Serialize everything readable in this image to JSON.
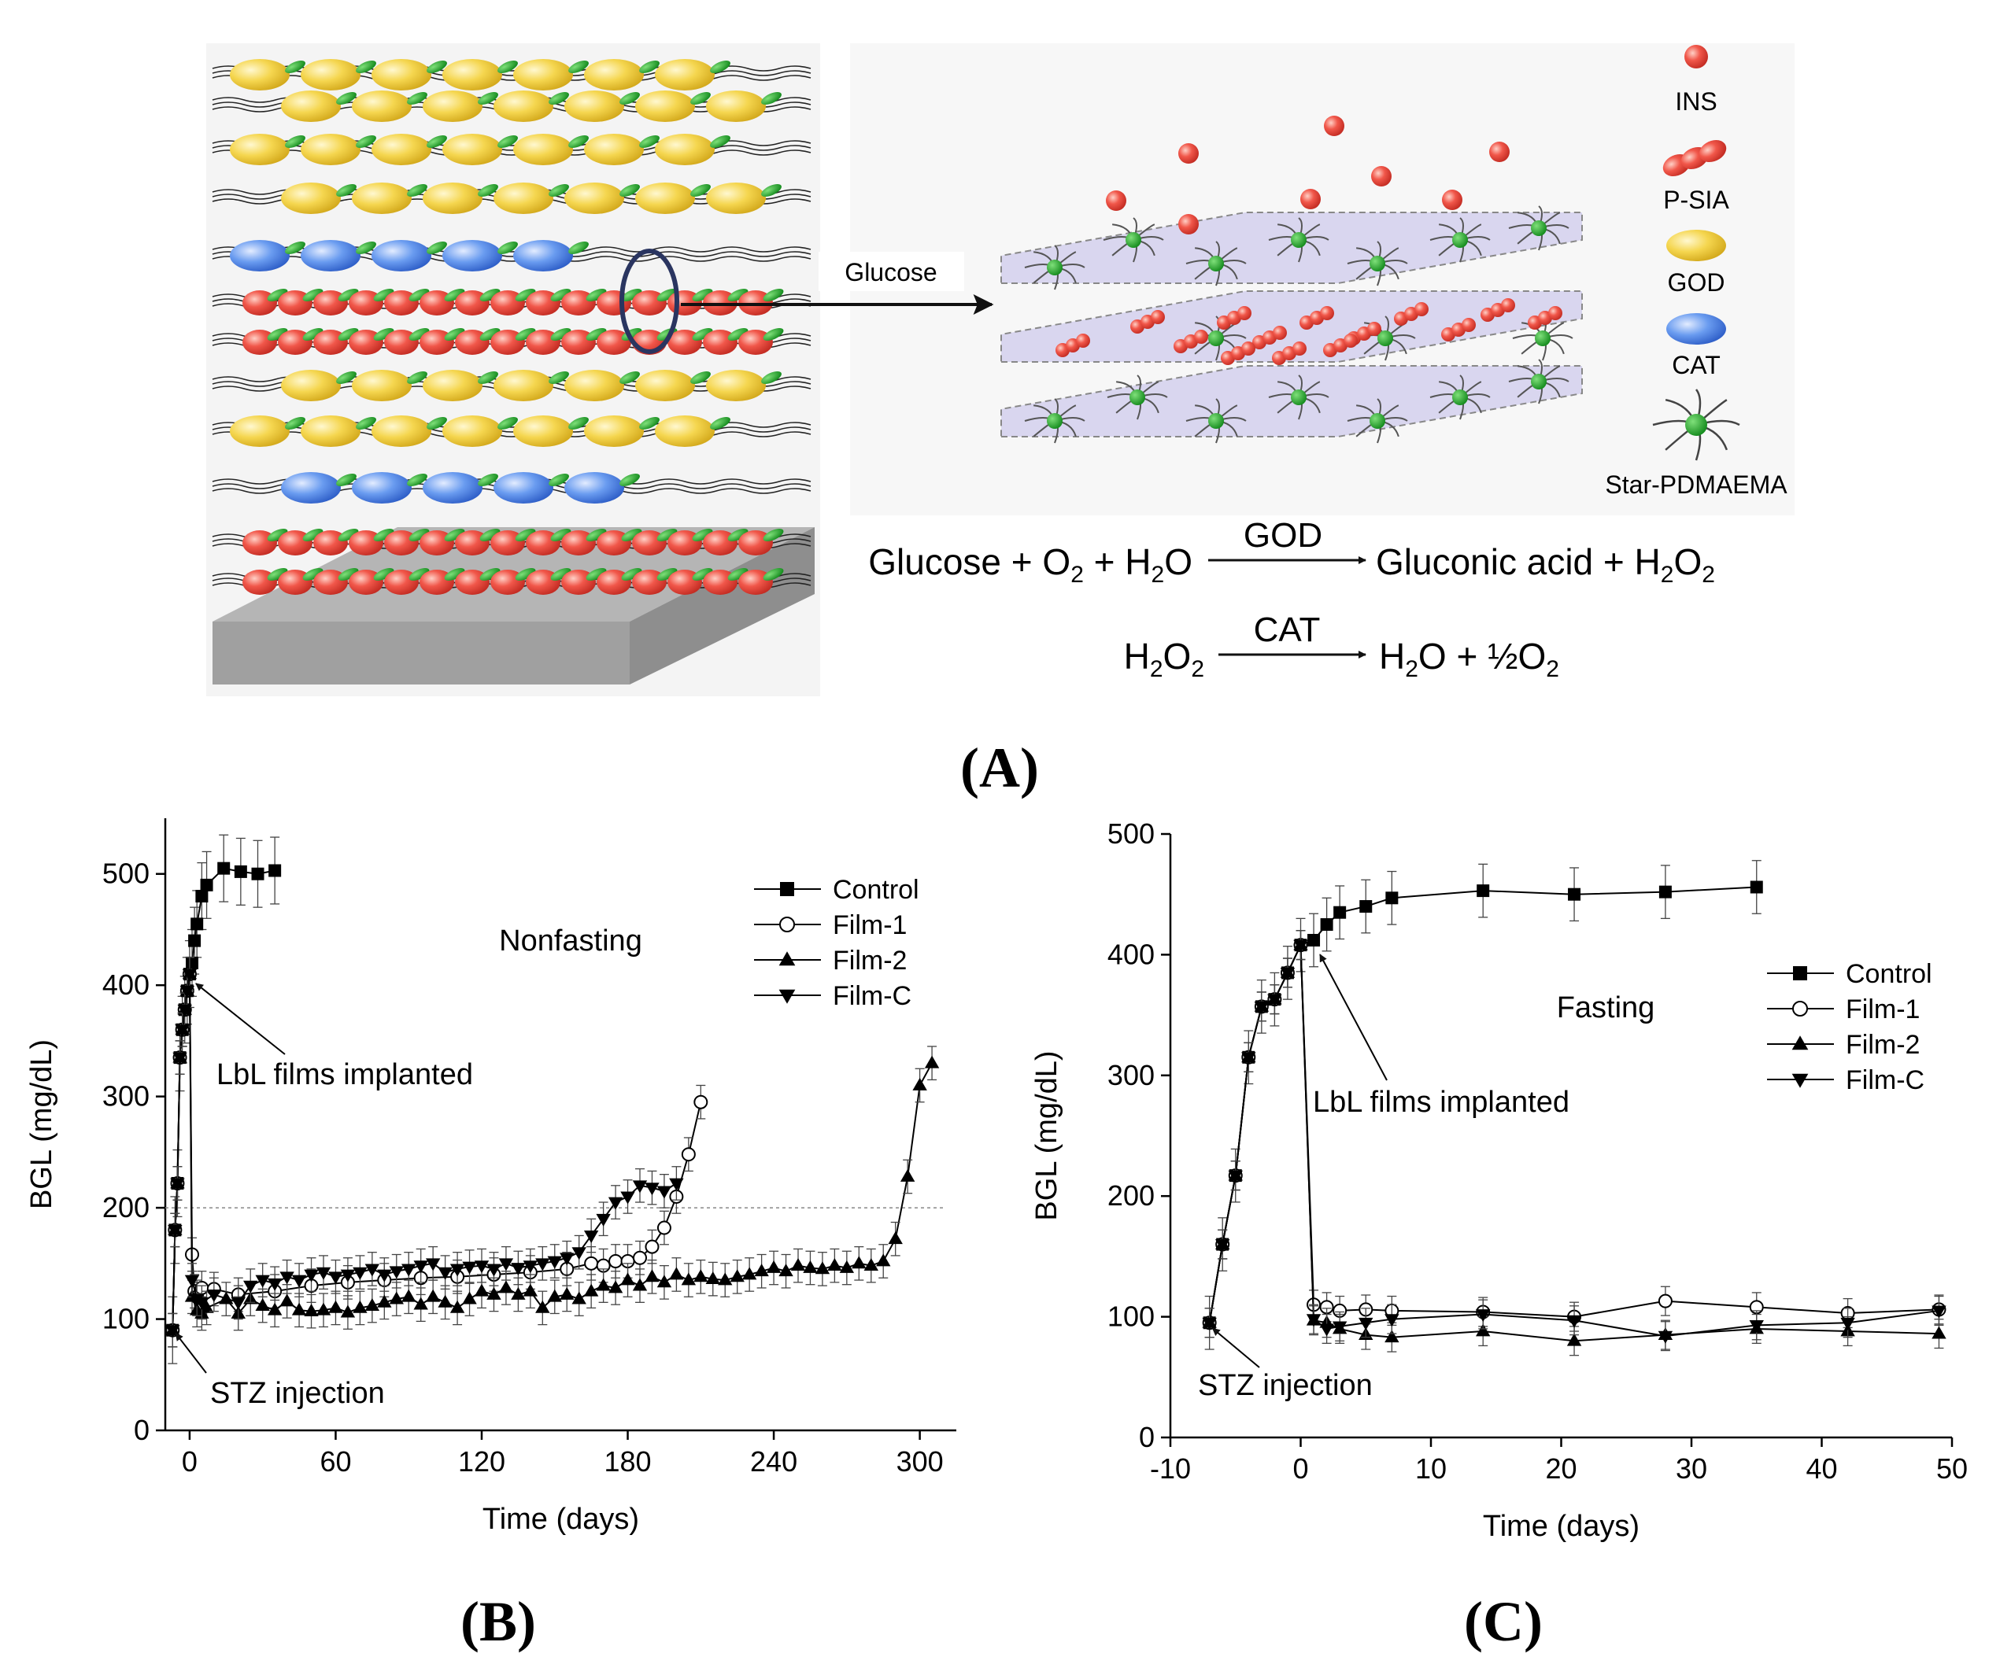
{
  "panel_a": {
    "label": "(A)",
    "arrow_label": "Glucose",
    "legend": [
      {
        "label": "INS",
        "icon": "sphere-red",
        "color": "#ef5a4a"
      },
      {
        "label": "P-SIA",
        "icon": "chain-red",
        "color": "#ef4a3f"
      },
      {
        "label": "GOD",
        "icon": "ellipse-yellow",
        "color": "#f4d44a"
      },
      {
        "label": "CAT",
        "icon": "ellipse-blue",
        "color": "#5a8fe8"
      },
      {
        "label": "Star-PDMAEMA",
        "icon": "star-polymer",
        "color": "#1f9a2a"
      }
    ],
    "reaction1": {
      "left_parts": [
        "Glucose + O",
        "2",
        " + H",
        "2",
        "O"
      ],
      "enzyme": "GOD",
      "right_parts": [
        "Gluconic acid + H",
        "2",
        "O",
        "2"
      ]
    },
    "reaction2": {
      "left_parts": [
        "H",
        "2",
        "O",
        "2"
      ],
      "enzyme": "CAT",
      "right_parts": [
        "H",
        "2",
        "O + ½O",
        "2"
      ]
    }
  },
  "chart_data": [
    {
      "id": "B",
      "type": "line",
      "panel_label": "(B)",
      "annotation": "Nonfasting",
      "xlabel": "Time (days)",
      "ylabel": "BGL (mg/dL)",
      "xlim": [
        -10,
        315
      ],
      "ylim": [
        0,
        550
      ],
      "xticks": [
        0,
        60,
        120,
        180,
        240,
        300
      ],
      "yticks": [
        0,
        100,
        200,
        300,
        400,
        500
      ],
      "reference_line": 200,
      "callouts": [
        {
          "text": "LbL films implanted",
          "point": [
            0,
            410
          ]
        },
        {
          "text": "STZ injection",
          "point": [
            -7,
            90
          ]
        }
      ],
      "series": [
        {
          "name": "Control",
          "marker": "square-filled",
          "x": [
            -7,
            -6,
            -5,
            -4,
            -3,
            -2,
            -1,
            0,
            1,
            2,
            3,
            5,
            7,
            14,
            21,
            28,
            35
          ],
          "y": [
            90,
            180,
            222,
            335,
            360,
            378,
            395,
            410,
            420,
            440,
            455,
            480,
            490,
            505,
            502,
            500,
            503
          ],
          "err": 30
        },
        {
          "name": "Film-1",
          "marker": "circle-open",
          "x": [
            -7,
            -6,
            -5,
            -4,
            -3,
            -2,
            -1,
            0,
            1,
            2,
            3,
            5,
            10,
            20,
            35,
            50,
            65,
            80,
            95,
            110,
            125,
            140,
            155,
            165,
            170,
            175,
            180,
            185,
            190,
            195,
            200,
            205,
            210
          ],
          "y": [
            90,
            180,
            222,
            335,
            360,
            378,
            395,
            410,
            158,
            125,
            120,
            128,
            127,
            122,
            125,
            130,
            133,
            135,
            137,
            138,
            140,
            142,
            145,
            150,
            148,
            152,
            152,
            155,
            165,
            182,
            210,
            248,
            295
          ],
          "err": 15
        },
        {
          "name": "Film-2",
          "marker": "triangle-up-filled",
          "x": [
            -7,
            -6,
            -5,
            -4,
            -3,
            -2,
            -1,
            0,
            1,
            3,
            5,
            7,
            15,
            20,
            25,
            30,
            35,
            40,
            45,
            50,
            55,
            60,
            65,
            70,
            75,
            80,
            85,
            90,
            95,
            100,
            105,
            110,
            115,
            120,
            125,
            130,
            135,
            140,
            145,
            150,
            155,
            160,
            165,
            170,
            175,
            180,
            185,
            190,
            195,
            200,
            205,
            210,
            215,
            220,
            225,
            230,
            235,
            240,
            245,
            250,
            255,
            260,
            265,
            270,
            275,
            280,
            285,
            290,
            295,
            300,
            305
          ],
          "y": [
            90,
            180,
            222,
            335,
            360,
            378,
            395,
            410,
            120,
            108,
            105,
            110,
            118,
            105,
            118,
            112,
            108,
            116,
            108,
            107,
            108,
            110,
            106,
            110,
            112,
            115,
            118,
            120,
            113,
            120,
            115,
            110,
            118,
            125,
            122,
            128,
            122,
            125,
            110,
            120,
            122,
            118,
            125,
            130,
            128,
            135,
            130,
            138,
            133,
            140,
            135,
            138,
            136,
            135,
            138,
            140,
            143,
            146,
            143,
            148,
            146,
            145,
            148,
            146,
            150,
            148,
            152,
            172,
            228,
            310,
            330
          ],
          "err": 15
        },
        {
          "name": "Film-C",
          "marker": "triangle-down-filled",
          "x": [
            -7,
            -6,
            -5,
            -4,
            -3,
            -2,
            -1,
            0,
            1,
            3,
            5,
            10,
            20,
            25,
            30,
            35,
            40,
            45,
            50,
            55,
            60,
            65,
            70,
            75,
            80,
            85,
            90,
            95,
            100,
            105,
            110,
            115,
            120,
            125,
            130,
            135,
            140,
            145,
            150,
            155,
            160,
            165,
            170,
            175,
            180,
            185,
            190,
            195,
            200
          ],
          "y": [
            90,
            180,
            222,
            335,
            360,
            378,
            395,
            410,
            135,
            118,
            115,
            122,
            115,
            130,
            135,
            132,
            138,
            135,
            140,
            142,
            138,
            140,
            142,
            145,
            140,
            143,
            145,
            148,
            150,
            142,
            145,
            147,
            148,
            145,
            150,
            146,
            148,
            150,
            152,
            155,
            160,
            175,
            190,
            205,
            210,
            220,
            218,
            215,
            222
          ],
          "err": 15
        }
      ]
    },
    {
      "id": "C",
      "type": "line",
      "panel_label": "(C)",
      "annotation": "Fasting",
      "xlabel": "Time (days)",
      "ylabel": "BGL (mg/dL)",
      "xlim": [
        -10,
        50
      ],
      "ylim": [
        0,
        500
      ],
      "xticks": [
        -10,
        0,
        10,
        20,
        30,
        40,
        50
      ],
      "yticks": [
        0,
        100,
        200,
        300,
        400,
        500
      ],
      "callouts": [
        {
          "text": "LbL films implanted",
          "point": [
            1,
            408
          ]
        },
        {
          "text": "STZ injection",
          "point": [
            -7,
            93
          ]
        }
      ],
      "series": [
        {
          "name": "Control",
          "marker": "square-filled",
          "x": [
            -7,
            -6,
            -5,
            -4,
            -3,
            -2,
            -1,
            0,
            1,
            2,
            3,
            5,
            7,
            14,
            21,
            28,
            35
          ],
          "y": [
            95,
            160,
            217,
            315,
            357,
            363,
            385,
            408,
            412,
            425,
            435,
            440,
            447,
            453,
            450,
            452,
            456
          ],
          "err": 22
        },
        {
          "name": "Film-1",
          "marker": "circle-open",
          "x": [
            -7,
            -6,
            -5,
            -4,
            -3,
            -2,
            -1,
            0,
            1,
            2,
            3,
            5,
            7,
            14,
            21,
            28,
            35,
            42,
            49
          ],
          "y": [
            95,
            160,
            217,
            315,
            357,
            363,
            385,
            408,
            110,
            108,
            105,
            106,
            105,
            104,
            100,
            113,
            108,
            103,
            106
          ],
          "err": 12
        },
        {
          "name": "Film-2",
          "marker": "triangle-up-filled",
          "x": [
            -7,
            -6,
            -5,
            -4,
            -3,
            -2,
            -1,
            0,
            1,
            2,
            3,
            5,
            7,
            14,
            21,
            28,
            35,
            42,
            49
          ],
          "y": [
            95,
            160,
            217,
            315,
            357,
            363,
            385,
            408,
            97,
            95,
            90,
            85,
            83,
            88,
            80,
            85,
            90,
            88,
            86
          ],
          "err": 12
        },
        {
          "name": "Film-C",
          "marker": "triangle-down-filled",
          "x": [
            -7,
            -6,
            -5,
            -4,
            -3,
            -2,
            -1,
            0,
            1,
            2,
            3,
            5,
            7,
            14,
            21,
            28,
            35,
            42,
            49
          ],
          "y": [
            95,
            160,
            217,
            315,
            357,
            363,
            385,
            408,
            98,
            90,
            92,
            95,
            98,
            102,
            97,
            84,
            93,
            95,
            105
          ],
          "err": 12
        }
      ]
    }
  ]
}
